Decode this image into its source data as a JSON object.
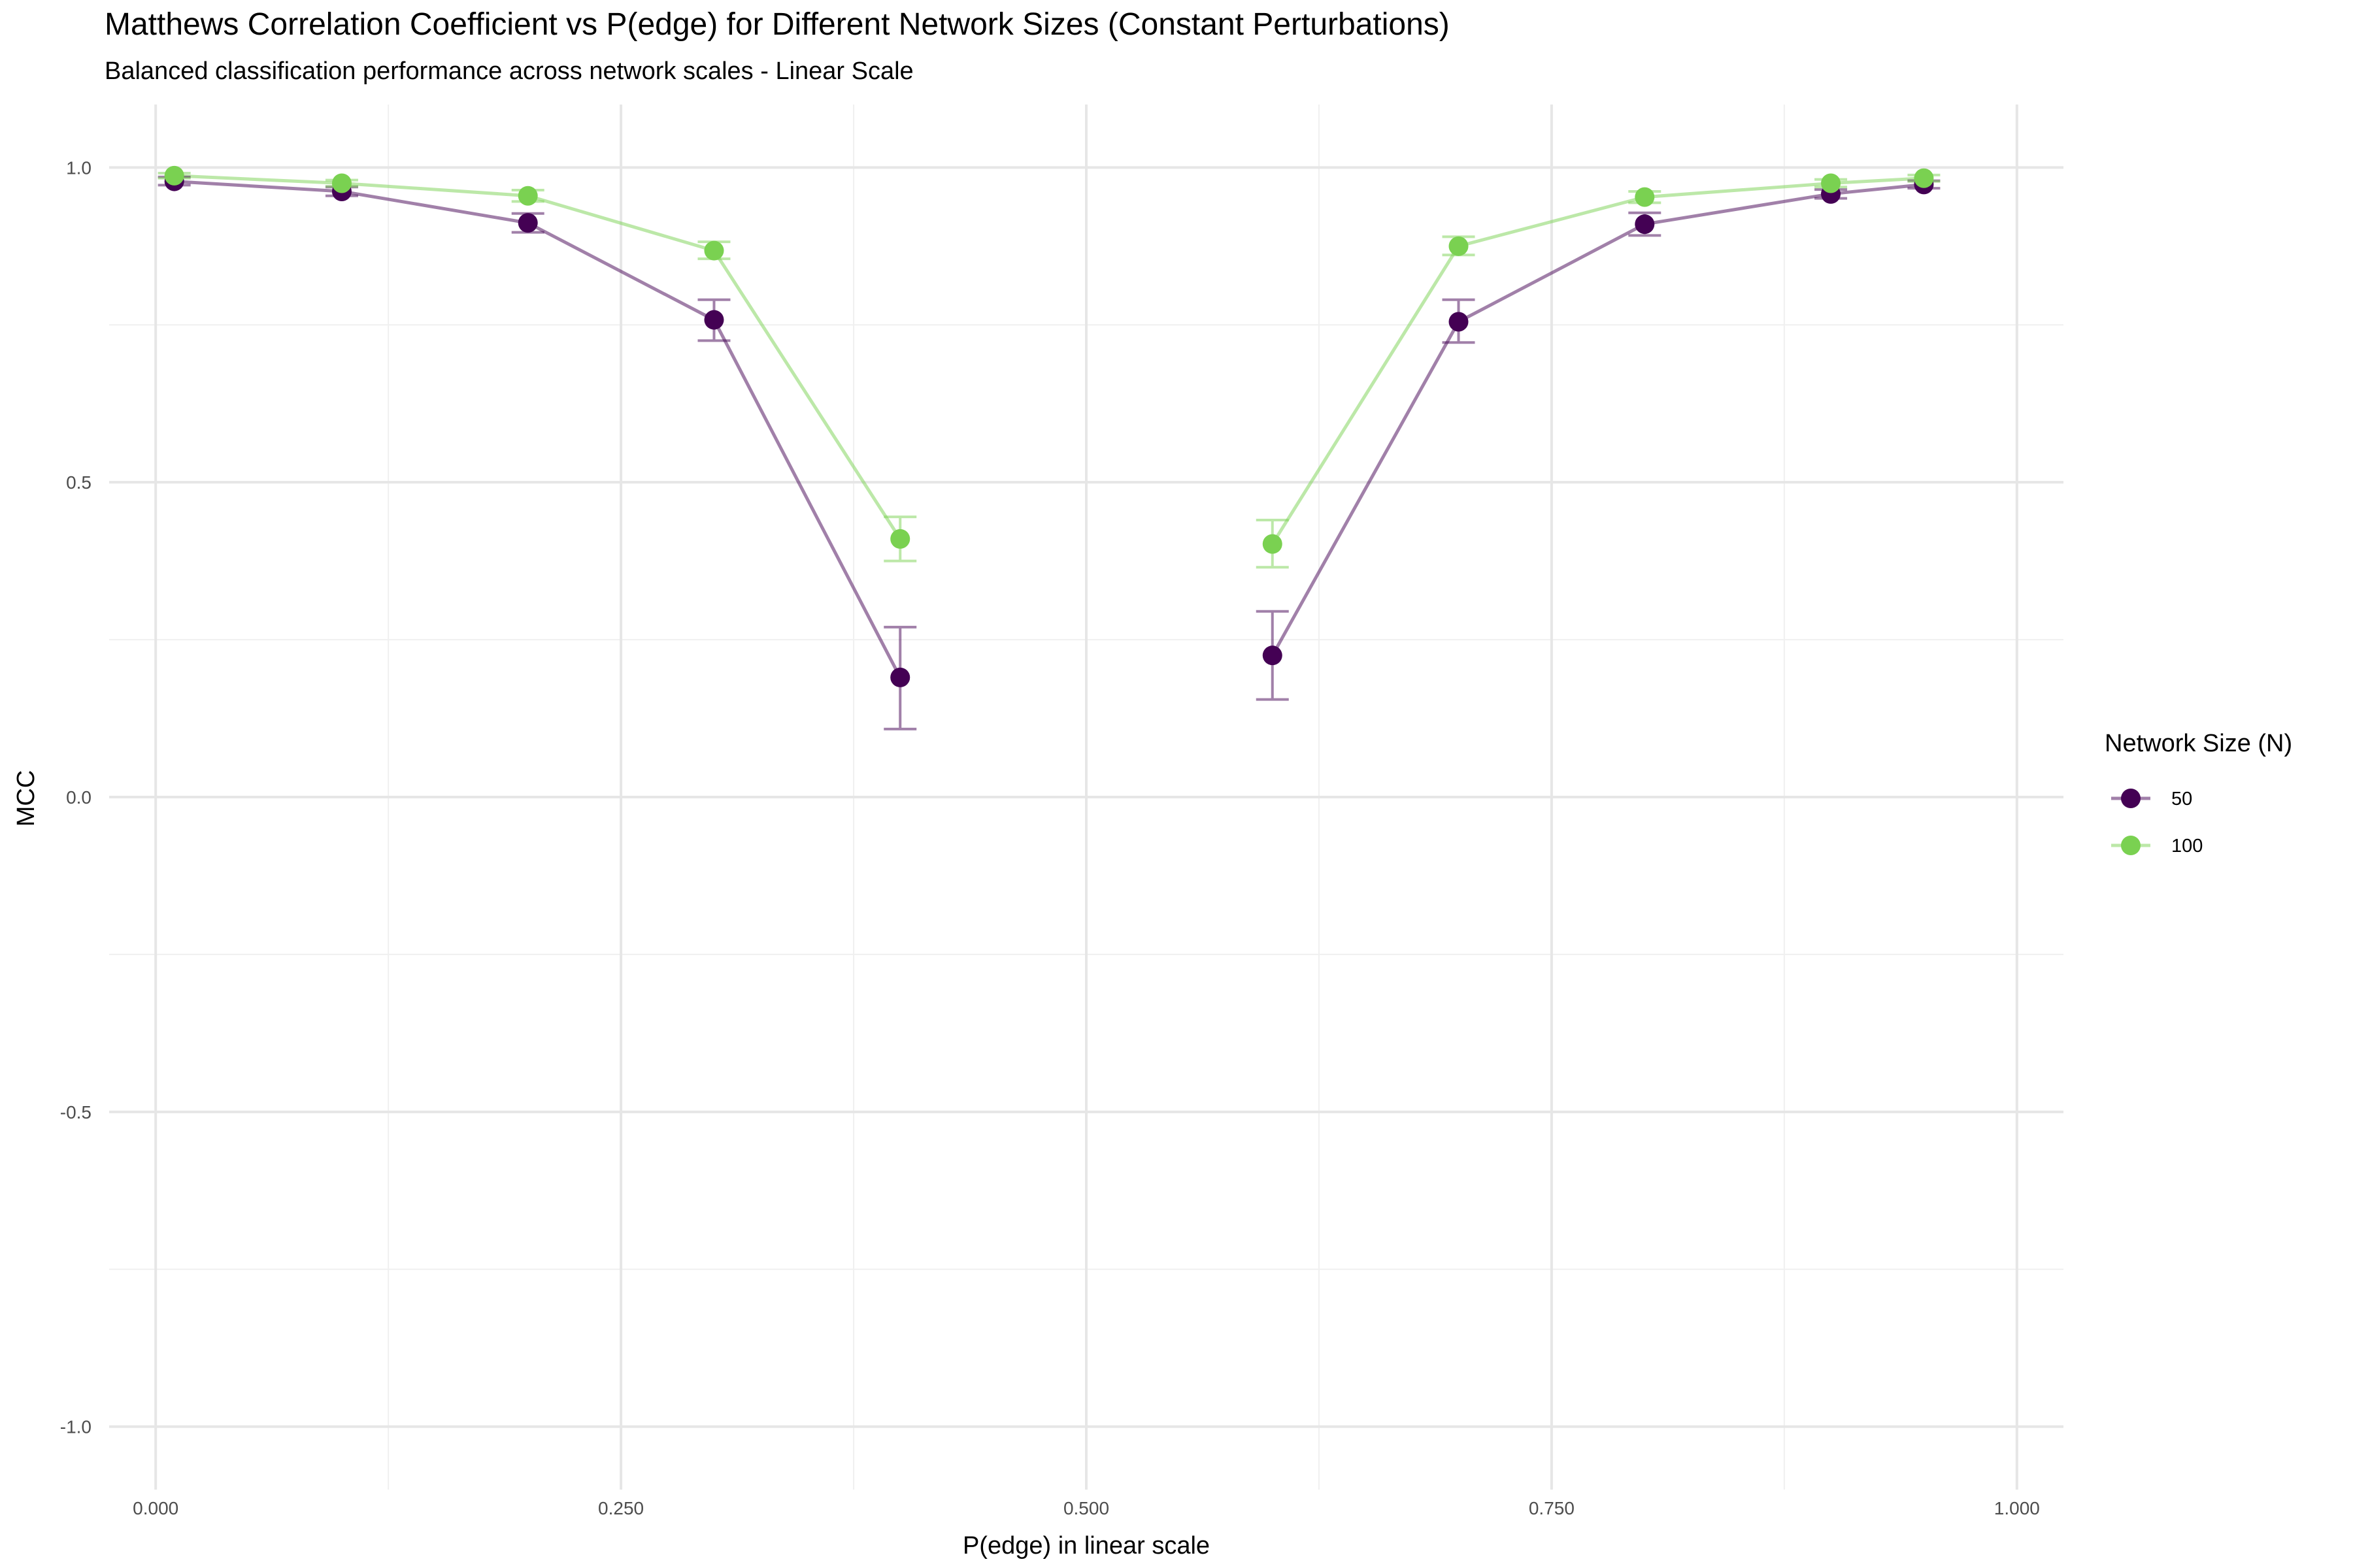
{
  "chart_data": {
    "type": "line",
    "title": "Matthews Correlation Coefficient vs P(edge) for Different Network Sizes (Constant Perturbations)",
    "subtitle": "Balanced classification performance across network scales - Linear Scale",
    "xlabel": "P(edge) in linear scale",
    "ylabel": "MCC",
    "xlim": [
      -0.025,
      1.025
    ],
    "ylim": [
      -1.1,
      1.1
    ],
    "x_ticks": [
      0.0,
      0.25,
      0.5,
      0.75,
      1.0
    ],
    "x_tick_labels": [
      "0.000",
      "0.250",
      "0.500",
      "0.750",
      "1.000"
    ],
    "y_ticks": [
      -1.0,
      -0.5,
      0.0,
      0.5,
      1.0
    ],
    "y_tick_labels": [
      "-1.0",
      "-0.5",
      "0.0",
      "0.5",
      "1.0"
    ],
    "grid": true,
    "legend": {
      "title": "Network Size (N)",
      "placement": "right"
    },
    "series": [
      {
        "name": "50",
        "color": "#440154",
        "segments": [
          {
            "x": [
              0.01,
              0.1,
              0.2,
              0.3,
              0.4
            ],
            "y": [
              0.978,
              0.962,
              0.912,
              0.758,
              0.19
            ],
            "err_low": [
              0.972,
              0.955,
              0.897,
              0.725,
              0.108
            ],
            "err_high": [
              0.985,
              0.969,
              0.927,
              0.79,
              0.27
            ]
          },
          {
            "x": [
              0.6,
              0.7,
              0.8,
              0.9,
              0.95
            ],
            "y": [
              0.225,
              0.755,
              0.91,
              0.958,
              0.973
            ],
            "err_low": [
              0.155,
              0.722,
              0.892,
              0.951,
              0.967
            ],
            "err_high": [
              0.295,
              0.79,
              0.928,
              0.965,
              0.979
            ]
          }
        ]
      },
      {
        "name": "100",
        "color": "#7AD151",
        "segments": [
          {
            "x": [
              0.01,
              0.1,
              0.2,
              0.3,
              0.4
            ],
            "y": [
              0.987,
              0.975,
              0.955,
              0.868,
              0.41
            ],
            "err_low": [
              0.983,
              0.97,
              0.946,
              0.855,
              0.375
            ],
            "err_high": [
              0.991,
              0.98,
              0.964,
              0.882,
              0.445
            ]
          },
          {
            "x": [
              0.6,
              0.7,
              0.8,
              0.9,
              0.95
            ],
            "y": [
              0.402,
              0.875,
              0.953,
              0.975,
              0.983
            ],
            "err_low": [
              0.365,
              0.861,
              0.944,
              0.969,
              0.978
            ],
            "err_high": [
              0.44,
              0.89,
              0.962,
              0.981,
              0.988
            ]
          }
        ]
      }
    ]
  }
}
